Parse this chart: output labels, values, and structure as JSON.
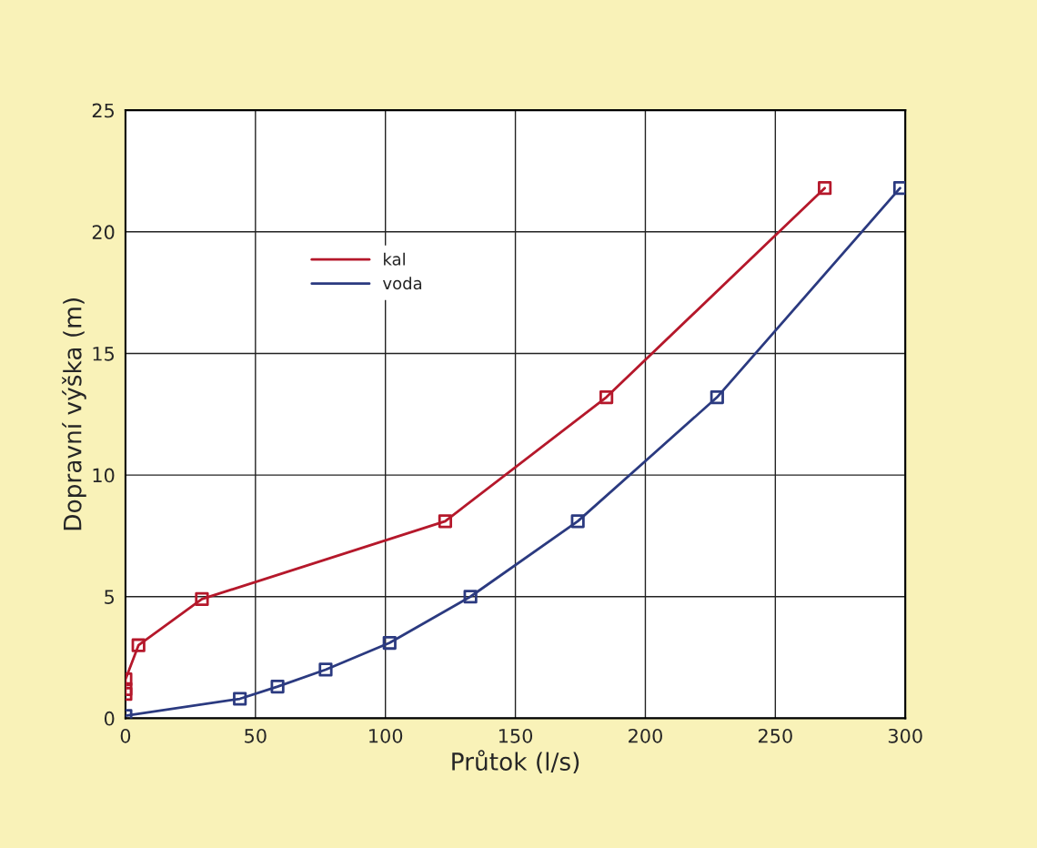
{
  "chart_data": {
    "type": "line",
    "xlabel": "Průtok (l/s)",
    "ylabel": "Dopravní výška (m)",
    "xlim": [
      0,
      300
    ],
    "xticks": [
      0,
      50,
      100,
      150,
      200,
      250,
      300
    ],
    "ylim": [
      0,
      25
    ],
    "yticks": [
      0,
      5,
      10,
      15,
      20,
      25
    ],
    "grid": true,
    "legend": "top left",
    "marker": "square",
    "line_style": "solid",
    "series": [
      {
        "name": "kal",
        "color": "#b5182b",
        "x": [
          0,
          0,
          0,
          5,
          29.4,
          123,
          185,
          269
        ],
        "values": [
          1.0,
          1.2,
          1.6,
          3.0,
          4.9,
          8.1,
          13.2,
          21.8
        ]
      },
      {
        "name": "voda",
        "color": "#2b3a80",
        "x": [
          0,
          44,
          58.5,
          77,
          101.6,
          132.7,
          174,
          227.6,
          298
        ],
        "values": [
          0.1,
          0.8,
          1.3,
          2.0,
          3.1,
          5.0,
          8.1,
          13.2,
          21.8
        ]
      }
    ]
  }
}
